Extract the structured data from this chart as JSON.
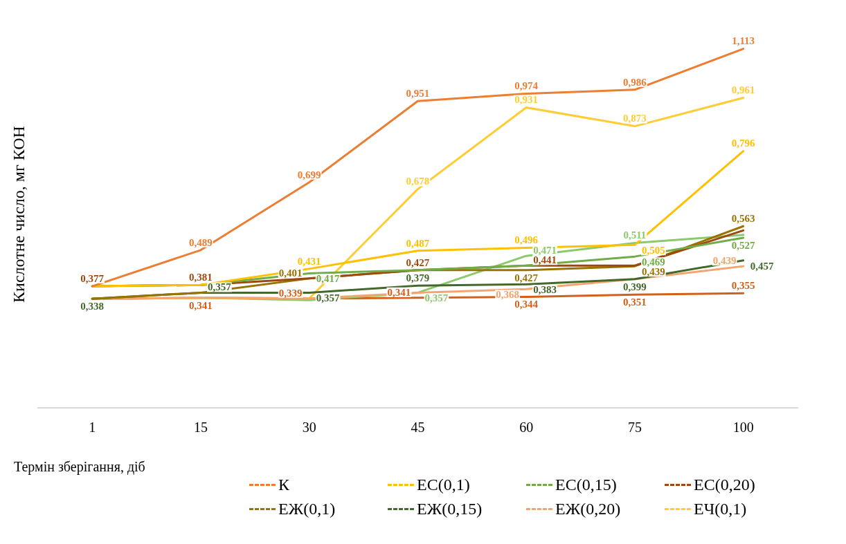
{
  "chart_data": {
    "type": "line",
    "xlabel": "Термін зберігання, діб",
    "ylabel": "Кислотне число, мг КОН",
    "categories": [
      "1",
      "15",
      "30",
      "45",
      "60",
      "75",
      "100"
    ],
    "series": [
      {
        "name": "К",
        "color": "#ed7d31",
        "values": [
          0.377,
          0.489,
          0.699,
          0.951,
          0.974,
          0.986,
          1.113
        ],
        "value_labels": [
          null,
          "0,489",
          "0,699",
          "0,951",
          "0,974",
          "0,986",
          "1,113"
        ]
      },
      {
        "name": "ЕС(0,1)",
        "color": "#ffc000",
        "values": [
          0.377,
          0.381,
          0.431,
          0.487,
          0.496,
          0.505,
          0.796
        ],
        "value_labels": [
          null,
          null,
          "0,431",
          "0,487",
          "0,496",
          "0,505",
          "0,796"
        ]
      },
      {
        "name": "ЕС(0,15)",
        "color": "#70ad47",
        "values": [
          0.377,
          0.381,
          0.417,
          0.427,
          0.441,
          0.469,
          0.527
        ],
        "value_labels": [
          null,
          null,
          "0,417",
          null,
          null,
          "0,469",
          "0,527"
        ]
      },
      {
        "name": "ЕС(0,20)",
        "color": "#9e480e",
        "values": [
          0.377,
          0.381,
          0.401,
          0.427,
          0.441,
          0.441,
          0.55
        ],
        "value_labels": [
          "0,377",
          "0,381",
          null,
          "0,427",
          "0,441",
          null,
          null
        ]
      },
      {
        "name": "ЕЖ(0,1)",
        "color": "#997300",
        "values": [
          0.338,
          0.357,
          0.401,
          0.427,
          0.427,
          0.439,
          0.563
        ],
        "value_labels": [
          null,
          null,
          "0,401",
          null,
          "0,427",
          "0,439",
          "0,563"
        ]
      },
      {
        "name": "ЕЖ(0,15)",
        "color": "#43682b",
        "values": [
          0.338,
          0.357,
          0.357,
          0.379,
          0.383,
          0.399,
          0.457
        ],
        "value_labels": [
          "0,338",
          "0,357",
          "0,357",
          "0,379",
          "0,383",
          "0,399",
          "0,457"
        ]
      },
      {
        "name": "ЕЖ(0,20)",
        "color": "#f4a46e",
        "values": [
          0.338,
          0.341,
          0.339,
          0.357,
          0.368,
          0.399,
          0.439
        ],
        "value_labels": [
          null,
          null,
          null,
          null,
          "0,368",
          null,
          "0,439"
        ]
      },
      {
        "name": "ЕЧ(0,1)",
        "color": "#ffcd33",
        "values": [
          0.338,
          0.341,
          0.339,
          0.678,
          0.931,
          0.873,
          0.961
        ],
        "value_labels": [
          null,
          null,
          null,
          "0,678",
          "0,931",
          "0,873",
          "0,961"
        ]
      },
      {
        "color": "#8cc96a",
        "values": [
          0.338,
          0.341,
          0.334,
          0.357,
          0.471,
          0.511,
          0.536
        ],
        "value_labels": [
          null,
          null,
          null,
          "0,357",
          "0,471",
          "0,511",
          null
        ]
      },
      {
        "color": "#d0601a",
        "values": [
          0.338,
          0.341,
          0.339,
          0.341,
          0.344,
          0.351,
          0.355
        ],
        "value_labels": [
          null,
          "0,341",
          "0,339",
          "0,341",
          "0,344",
          "0,351",
          "0,355"
        ]
      }
    ],
    "grid": false,
    "legend": "bottom",
    "marker": "none",
    "line_style": "solid"
  }
}
